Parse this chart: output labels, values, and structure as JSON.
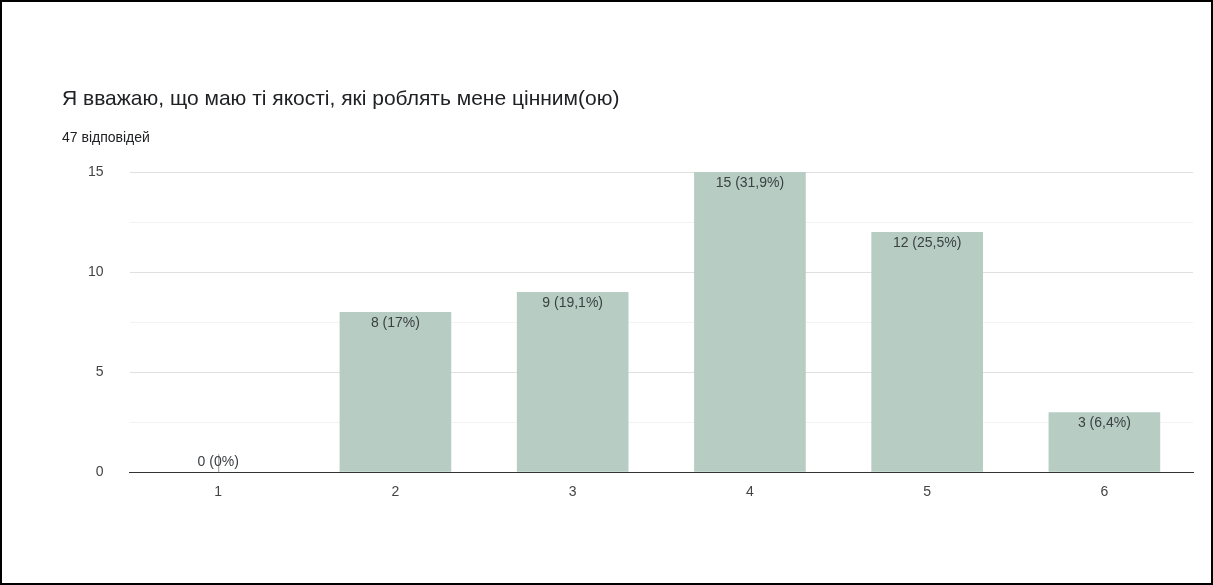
{
  "chart_data": {
    "type": "bar",
    "title": "Я вважаю, що маю ті якості, які роблять мене цінним(ою)",
    "subtitle": "47 відповідей",
    "categories": [
      "1",
      "2",
      "3",
      "4",
      "5",
      "6"
    ],
    "values": [
      0,
      8,
      9,
      15,
      12,
      3
    ],
    "value_labels": [
      "0 (0%)",
      "8 (17%)",
      "9 (19,1%)",
      "15 (31,9%)",
      "12 (25,5%)",
      "3 (6,4%)"
    ],
    "color": "#b7cdc4",
    "ylim": [
      0,
      15
    ],
    "yticks": [
      0,
      {
        "value": 2.5,
        "label": null
      },
      5,
      {
        "value": 7.5,
        "label": null
      },
      10,
      {
        "value": 12.5,
        "label": null
      },
      15
    ],
    "grid": "y"
  }
}
